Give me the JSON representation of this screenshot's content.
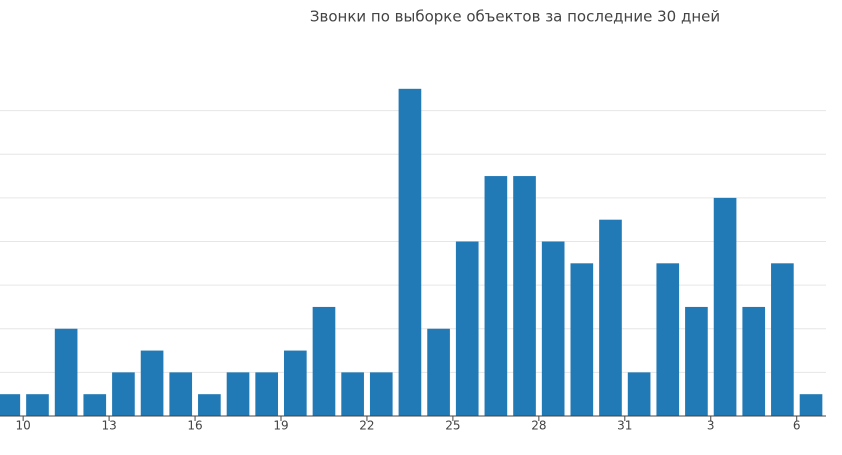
{
  "chart_data": {
    "type": "bar",
    "title": "Звонки по выборке объектов за последние 30 дней",
    "categories": [
      null,
      "10",
      null,
      null,
      "13",
      null,
      null,
      "16",
      null,
      null,
      "19",
      null,
      null,
      "22",
      null,
      null,
      "25",
      null,
      null,
      "28",
      null,
      null,
      "31",
      null,
      null,
      "3",
      null,
      null,
      "6"
    ],
    "values": [
      1,
      1,
      4,
      1,
      2,
      3,
      2,
      1,
      2,
      2,
      3,
      5,
      2,
      2,
      15,
      4,
      8,
      11,
      11,
      8,
      7,
      9,
      2,
      7,
      5,
      10,
      5,
      7,
      1
    ],
    "color": "#2179b5",
    "ylim": [
      0,
      16
    ],
    "yticks": [
      0,
      2,
      4,
      6,
      8,
      10,
      12,
      14
    ],
    "grid": true
  }
}
